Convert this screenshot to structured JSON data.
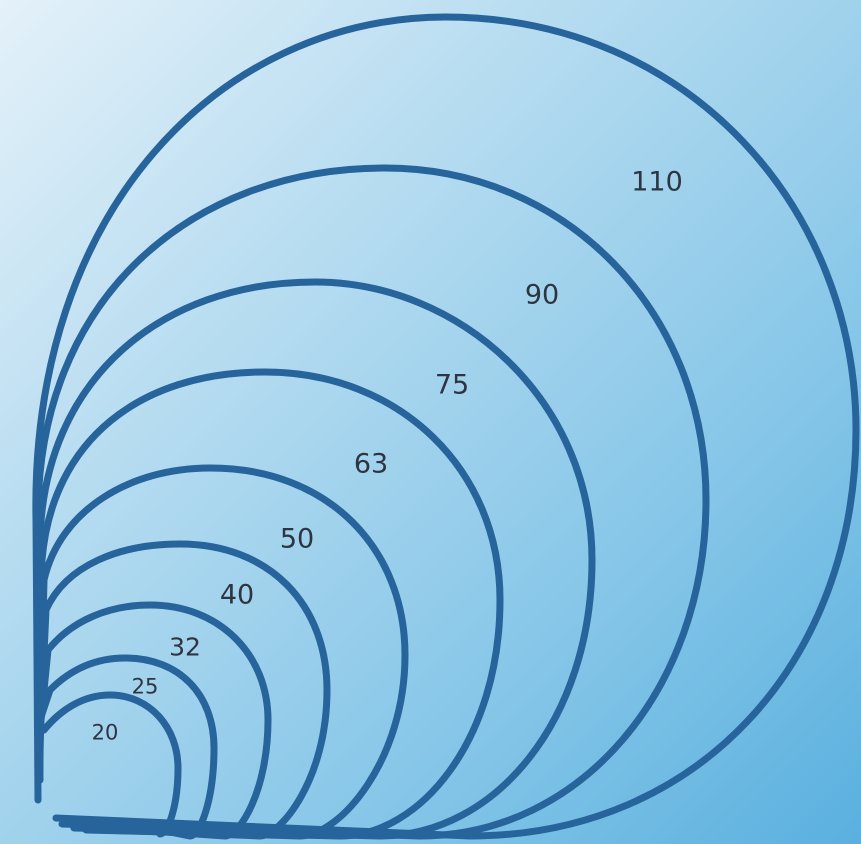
{
  "colors": {
    "ring_stroke": "#27649c",
    "label_text": "#2e3440",
    "background_light": "#e4f1f9",
    "background_dark": "#5ab0df"
  },
  "rings": [
    {
      "label": "20"
    },
    {
      "label": "25"
    },
    {
      "label": "32"
    },
    {
      "label": "40"
    },
    {
      "label": "50"
    },
    {
      "label": "63"
    },
    {
      "label": "75"
    },
    {
      "label": "90"
    },
    {
      "label": "110"
    }
  ]
}
